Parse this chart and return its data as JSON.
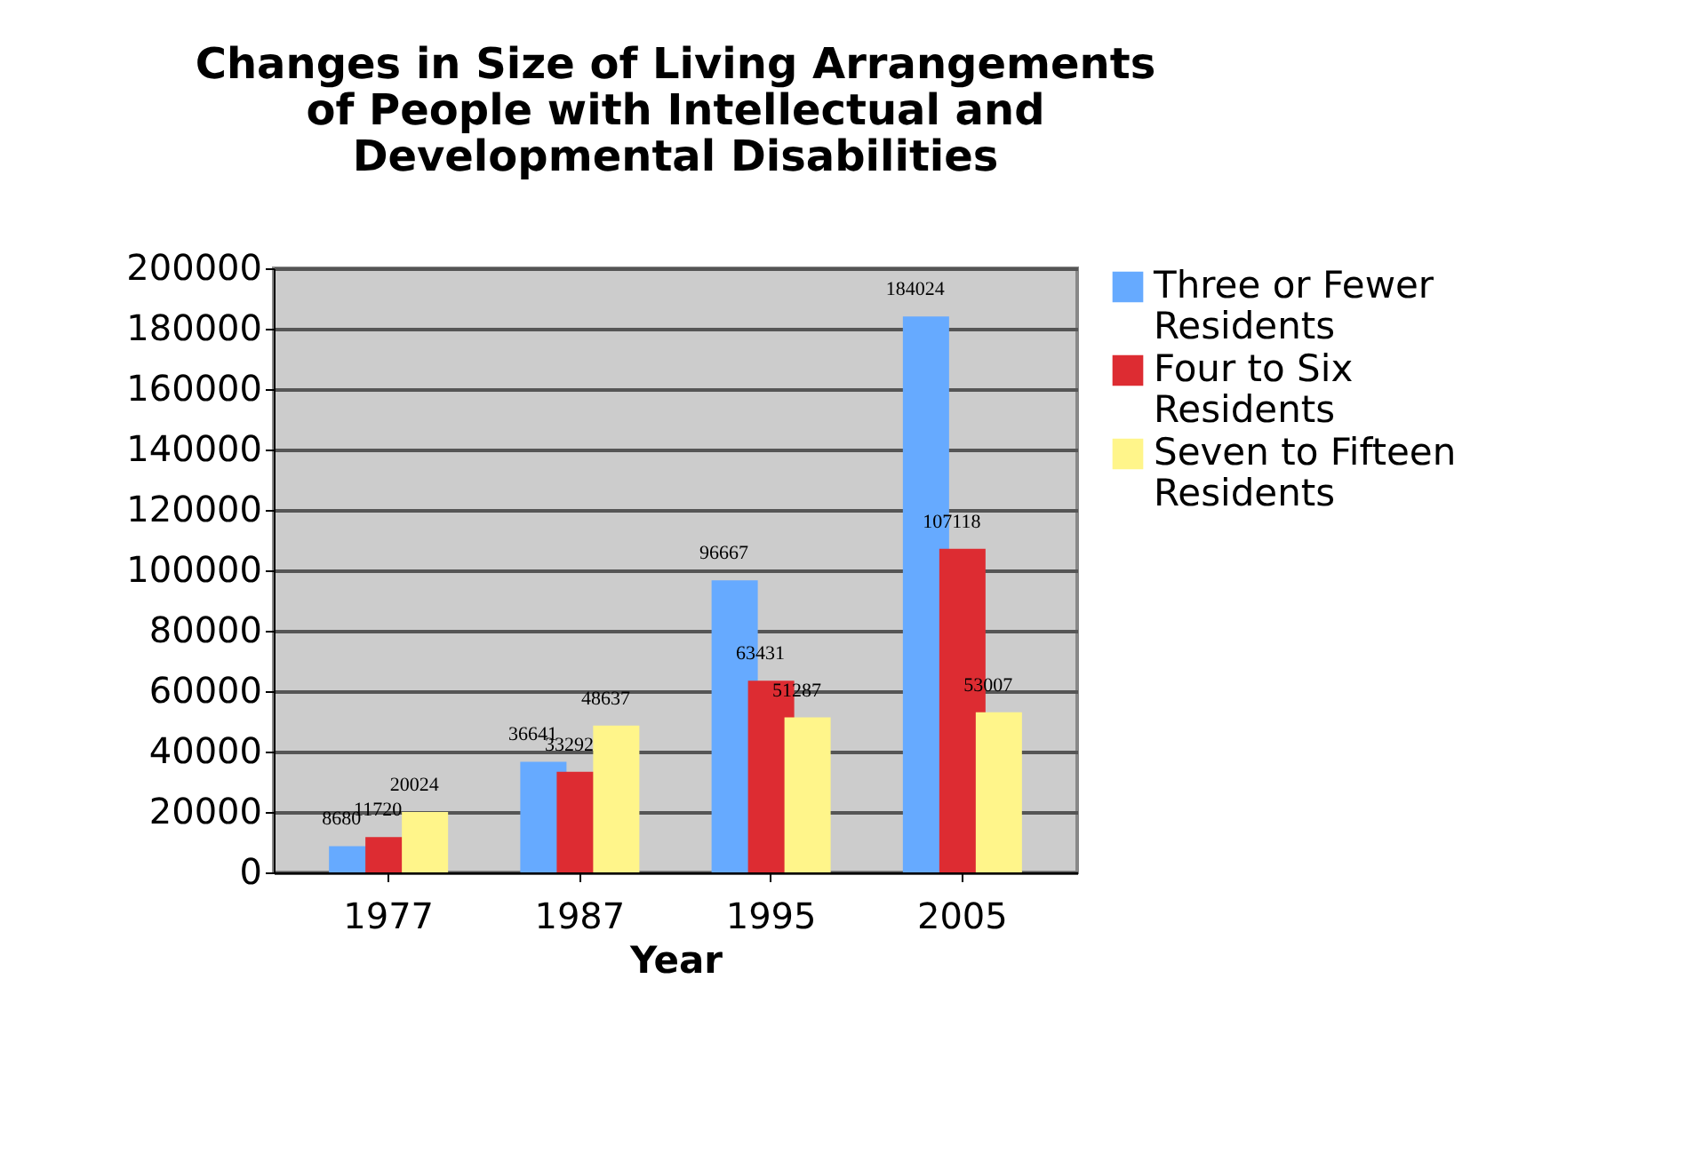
{
  "chart_data": {
    "type": "bar",
    "title": "Changes in Size of Living Arrangements of People with Intellectual and Developmental Disabilities",
    "xlabel": "Year",
    "categories": [
      "1977",
      "1987",
      "1995",
      "2005"
    ],
    "series": [
      {
        "name": "Three or Fewer Residents",
        "color": "#66aaff",
        "values": [
          8680,
          36641,
          96667,
          184024
        ]
      },
      {
        "name": "Four to Six Residents",
        "color": "#dd2c32",
        "values": [
          11720,
          33292,
          63431,
          107118
        ]
      },
      {
        "name": "Seven to Fifteen Residents",
        "color": "#fff58a",
        "values": [
          20024,
          48637,
          51287,
          53007
        ]
      }
    ],
    "ylim": [
      0,
      200000
    ],
    "yticks": [
      0,
      20000,
      40000,
      60000,
      80000,
      100000,
      120000,
      140000,
      160000,
      180000,
      200000
    ],
    "grid": "y",
    "legend": "right",
    "data_labels": true
  }
}
